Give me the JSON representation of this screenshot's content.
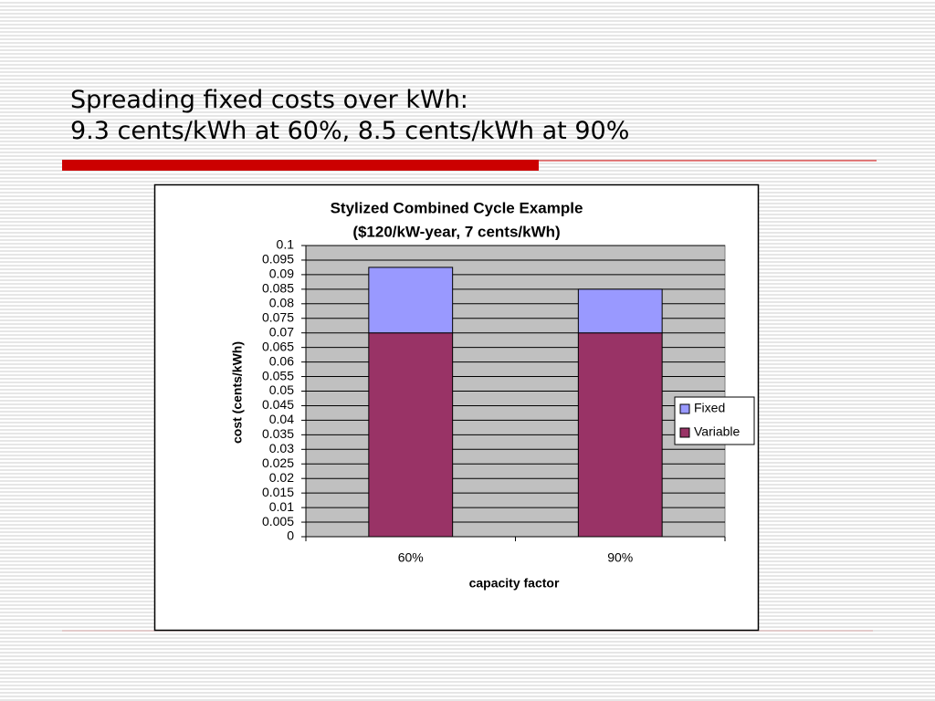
{
  "slide_title": [
    "Spreading fixed costs over kWh:",
    "9.3 cents/kWh at 60%, 8.5 cents/kWh at 90%"
  ],
  "chart_data": {
    "type": "bar",
    "stacked": true,
    "title": [
      "Stylized Combined Cycle Example",
      "($120/kW-year, 7 cents/kWh)"
    ],
    "x_label": "capacity factor",
    "y_label": "cost (cents/kWh)",
    "categories": [
      "60%",
      "90%"
    ],
    "series": [
      {
        "name": "Variable",
        "color": "#993366",
        "values": [
          0.07,
          0.07
        ]
      },
      {
        "name": "Fixed",
        "color": "#9999ff",
        "values": [
          0.0225,
          0.015
        ]
      }
    ],
    "ylim": [
      0,
      0.1
    ],
    "yticks": [
      0,
      0.005,
      0.01,
      0.015,
      0.02,
      0.025,
      0.03,
      0.035,
      0.04,
      0.045,
      0.05,
      0.055,
      0.06,
      0.065,
      0.07,
      0.075,
      0.08,
      0.085,
      0.09,
      0.095,
      0.1
    ],
    "grid": true,
    "legend": "right"
  }
}
